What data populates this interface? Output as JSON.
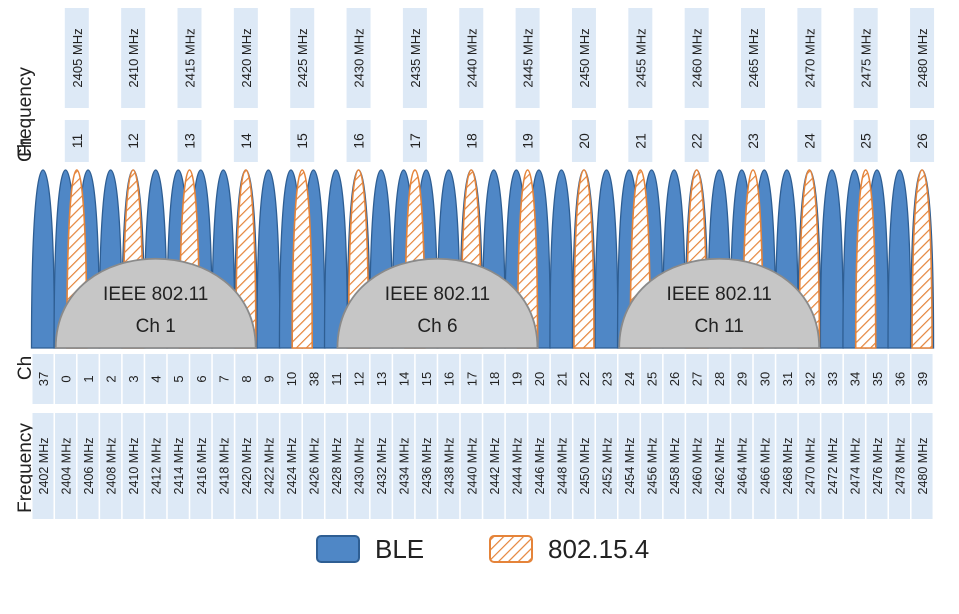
{
  "labels": {
    "top_ch": "Ch",
    "top_frequency": "Frequency",
    "bottom_ch": "Ch",
    "bottom_frequency": "Frequency"
  },
  "legend": {
    "ble": "BLE",
    "zigbee": "802.15.4"
  },
  "colors": {
    "ble_fill": "#4f87c6",
    "ble_fill_light": "#9cc0e6",
    "ble_stroke": "#2e5e93",
    "zigbee_stroke": "#e5843a",
    "wifi_fill": "#c6c6c6",
    "wifi_stroke": "#8a8a8a",
    "cell_bg": "#dde9f6",
    "text": "#222222"
  },
  "zigbee_channels": [
    {
      "ch": "11",
      "freq": "2405 MHz"
    },
    {
      "ch": "12",
      "freq": "2410 MHz"
    },
    {
      "ch": "13",
      "freq": "2415 MHz"
    },
    {
      "ch": "14",
      "freq": "2420 MHz"
    },
    {
      "ch": "15",
      "freq": "2425 MHz"
    },
    {
      "ch": "16",
      "freq": "2430 MHz"
    },
    {
      "ch": "17",
      "freq": "2435 MHz"
    },
    {
      "ch": "18",
      "freq": "2440 MHz"
    },
    {
      "ch": "19",
      "freq": "2445 MHz"
    },
    {
      "ch": "20",
      "freq": "2450 MHz"
    },
    {
      "ch": "21",
      "freq": "2455 MHz"
    },
    {
      "ch": "22",
      "freq": "2460 MHz"
    },
    {
      "ch": "23",
      "freq": "2465 MHz"
    },
    {
      "ch": "24",
      "freq": "2470 MHz"
    },
    {
      "ch": "25",
      "freq": "2475 MHz"
    },
    {
      "ch": "26",
      "freq": "2480 MHz"
    }
  ],
  "ble_channels": [
    {
      "ch": "37",
      "freq": "2402 MHz"
    },
    {
      "ch": "0",
      "freq": "2404 MHz"
    },
    {
      "ch": "1",
      "freq": "2406 MHz"
    },
    {
      "ch": "2",
      "freq": "2408 MHz"
    },
    {
      "ch": "3",
      "freq": "2410 MHz"
    },
    {
      "ch": "4",
      "freq": "2412 MHz"
    },
    {
      "ch": "5",
      "freq": "2414 MHz"
    },
    {
      "ch": "6",
      "freq": "2416 MHz"
    },
    {
      "ch": "7",
      "freq": "2418 MHz"
    },
    {
      "ch": "8",
      "freq": "2420 MHz"
    },
    {
      "ch": "9",
      "freq": "2422 MHz"
    },
    {
      "ch": "10",
      "freq": "2424 MHz"
    },
    {
      "ch": "38",
      "freq": "2426 MHz"
    },
    {
      "ch": "11",
      "freq": "2428 MHz"
    },
    {
      "ch": "12",
      "freq": "2430 MHz"
    },
    {
      "ch": "13",
      "freq": "2432 MHz"
    },
    {
      "ch": "14",
      "freq": "2434 MHz"
    },
    {
      "ch": "15",
      "freq": "2436 MHz"
    },
    {
      "ch": "16",
      "freq": "2438 MHz"
    },
    {
      "ch": "17",
      "freq": "2440 MHz"
    },
    {
      "ch": "18",
      "freq": "2442 MHz"
    },
    {
      "ch": "19",
      "freq": "2444 MHz"
    },
    {
      "ch": "20",
      "freq": "2446 MHz"
    },
    {
      "ch": "21",
      "freq": "2448 MHz"
    },
    {
      "ch": "22",
      "freq": "2450 MHz"
    },
    {
      "ch": "23",
      "freq": "2452 MHz"
    },
    {
      "ch": "24",
      "freq": "2454 MHz"
    },
    {
      "ch": "25",
      "freq": "2456 MHz"
    },
    {
      "ch": "26",
      "freq": "2458 MHz"
    },
    {
      "ch": "27",
      "freq": "2460 MHz"
    },
    {
      "ch": "28",
      "freq": "2462 MHz"
    },
    {
      "ch": "29",
      "freq": "2464 MHz"
    },
    {
      "ch": "30",
      "freq": "2466 MHz"
    },
    {
      "ch": "31",
      "freq": "2468 MHz"
    },
    {
      "ch": "32",
      "freq": "2470 MHz"
    },
    {
      "ch": "33",
      "freq": "2472 MHz"
    },
    {
      "ch": "34",
      "freq": "2474 MHz"
    },
    {
      "ch": "35",
      "freq": "2476 MHz"
    },
    {
      "ch": "36",
      "freq": "2478 MHz"
    },
    {
      "ch": "39",
      "freq": "2480 MHz"
    }
  ],
  "wifi_channels": [
    {
      "line1": "IEEE 802.11",
      "line2": "Ch 1",
      "center_freq": 2412
    },
    {
      "line1": "IEEE 802.11",
      "line2": "Ch 6",
      "center_freq": 2437
    },
    {
      "line1": "IEEE 802.11",
      "line2": "Ch 11",
      "center_freq": 2462
    }
  ]
}
